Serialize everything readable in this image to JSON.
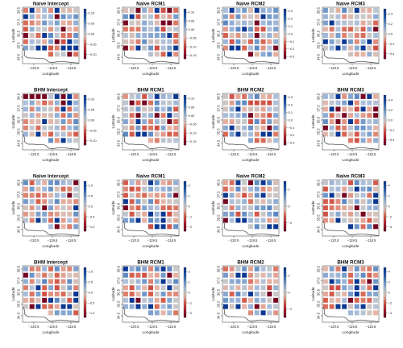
{
  "chart_data": {
    "type": "heatmap",
    "grid_rows": 4,
    "grid_cols": 4,
    "xticks": [
      "−120.5",
      "−119.5",
      "−118.5"
    ],
    "yticks": [
      "38.5",
      "37.5",
      "36.5",
      "35.5",
      "34.5"
    ],
    "xlabel": "Longitude",
    "ylabel": "Latitude",
    "panels": [
      {
        "title": "Naive Intercept",
        "colorbar_ticks": [
          "0.10",
          "0.05",
          "0.00",
          "−0.05",
          "−0.10"
        ],
        "range": [
          -0.12,
          0.12
        ]
      },
      {
        "title": "Naive RCM1",
        "colorbar_ticks": [
          "0.10",
          "0.05",
          "0.00",
          "−0.05",
          "−0.10",
          "−0.15"
        ],
        "range": [
          -0.17,
          0.12
        ]
      },
      {
        "title": "Naive RCM2",
        "colorbar_ticks": [
          "0.3",
          "0.2",
          "0.1",
          "0.0",
          "−0.1",
          "−0.2",
          "−0.3"
        ],
        "range": [
          -0.33,
          0.33
        ]
      },
      {
        "title": "Naive RCM3",
        "colorbar_ticks": [
          "0.4",
          "0.2",
          "0.0",
          "−0.2",
          "−0.4"
        ],
        "range": [
          -0.5,
          0.5
        ]
      },
      {
        "title": "BHM Intercept",
        "colorbar_ticks": [
          "0.10",
          "0.05",
          "0.00",
          "−0.05",
          "−0.10"
        ],
        "range": [
          -0.12,
          0.12
        ]
      },
      {
        "title": "BHM RCM1",
        "colorbar_ticks": [
          "0.10",
          "0.05",
          "0.00",
          "−0.05",
          "−0.10",
          "−0.15"
        ],
        "range": [
          -0.17,
          0.12
        ]
      },
      {
        "title": "BHM RCM2",
        "colorbar_ticks": [
          "0.3",
          "0.2",
          "0.1",
          "0.0",
          "−0.1",
          "−0.2",
          "−0.3"
        ],
        "range": [
          -0.33,
          0.33
        ]
      },
      {
        "title": "BHM RCM3",
        "colorbar_ticks": [
          "0.4",
          "0.2",
          "0.0",
          "−0.2",
          "−0.4"
        ],
        "range": [
          -0.5,
          0.5
        ]
      },
      {
        "title": "Naive Intercept",
        "colorbar_ticks": [
          "1.0",
          "0.5",
          "0.0",
          "−0.5",
          "−1.0"
        ],
        "range": [
          -1.2,
          1.2
        ]
      },
      {
        "title": "Naive RCM1",
        "colorbar_ticks": [
          "2",
          "1",
          "0",
          "−1",
          "−2"
        ],
        "range": [
          -2.4,
          2.4
        ]
      },
      {
        "title": "Naive RCM2",
        "colorbar_ticks": [
          "2",
          "0",
          "−2"
        ],
        "range": [
          -3,
          3
        ]
      },
      {
        "title": "Naive RCM3",
        "colorbar_ticks": [
          "4",
          "2",
          "0",
          "−2",
          "−4"
        ],
        "range": [
          -4.8,
          4.8
        ]
      },
      {
        "title": "BHM Intercept",
        "colorbar_ticks": [
          "1.0",
          "0.5",
          "0.0",
          "−0.5",
          "−1.0"
        ],
        "range": [
          -1.2,
          1.2
        ]
      },
      {
        "title": "BHM RCM1",
        "colorbar_ticks": [
          "2",
          "1",
          "0",
          "−1",
          "−2"
        ],
        "range": [
          -2.4,
          2.4
        ]
      },
      {
        "title": "BHM RCM2",
        "colorbar_ticks": [
          "2",
          "0",
          "−2"
        ],
        "range": [
          -3,
          3
        ]
      },
      {
        "title": "BHM RCM3",
        "colorbar_ticks": [
          "4",
          "2",
          "0",
          "−2",
          "−4"
        ],
        "range": [
          -4.8,
          4.8
        ]
      }
    ],
    "colors": {
      "high": "#053061",
      "mid": "#f7f7f7",
      "low": "#67001f",
      "coast": "#444444"
    }
  }
}
